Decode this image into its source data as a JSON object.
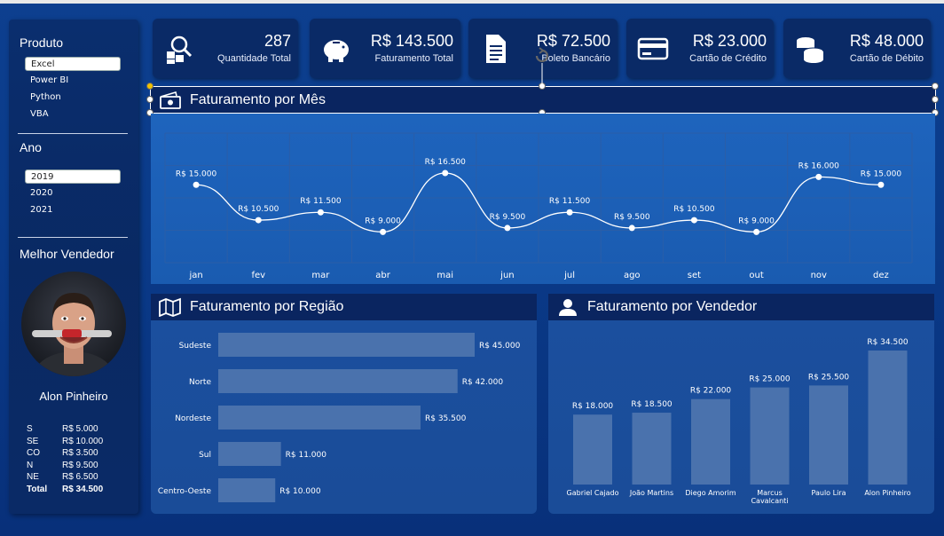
{
  "sidebar": {
    "produto_title": "Produto",
    "produtos": [
      "Excel",
      "Power BI",
      "Python",
      "VBA"
    ],
    "ano_title": "Ano",
    "anos": [
      "2019",
      "2020",
      "2021"
    ],
    "vendedor_title": "Melhor Vendedor",
    "seller_name": "Alon Pinheiro",
    "stats": [
      {
        "k": "S",
        "v": "R$ 5.000"
      },
      {
        "k": "SE",
        "v": "R$ 10.000"
      },
      {
        "k": "CO",
        "v": "R$ 3.500"
      },
      {
        "k": "N",
        "v": "R$ 9.500"
      },
      {
        "k": "NE",
        "v": "R$ 6.500"
      },
      {
        "k": "Total",
        "v": "R$ 34.500"
      }
    ]
  },
  "kpis": [
    {
      "value": "287",
      "label": "Quantidade Total",
      "icon": "search-boxes-icon"
    },
    {
      "value": "R$ 143.500",
      "label": "Faturamento Total",
      "icon": "piggy-bank-icon"
    },
    {
      "value": "R$ 72.500",
      "label": "Boleto Bancário",
      "icon": "document-icon"
    },
    {
      "value": "R$ 23.000",
      "label": "Cartão de Crédito",
      "icon": "credit-card-icon"
    },
    {
      "value": "R$ 48.000",
      "label": "Cartão de Débito",
      "icon": "coins-icon"
    }
  ],
  "panels": {
    "mes_title": "Faturamento por Mês",
    "regiao_title": "Faturamento por Região",
    "vendedor_title": "Faturamento por Vendedor"
  },
  "chart_data": [
    {
      "type": "line",
      "categories": [
        "jan",
        "fev",
        "mar",
        "abr",
        "mai",
        "jun",
        "jul",
        "ago",
        "set",
        "out",
        "nov",
        "dez"
      ],
      "values": [
        15000,
        10500,
        11500,
        9000,
        16500,
        9500,
        11500,
        9500,
        10500,
        9000,
        16000,
        15000
      ],
      "labels": [
        "R$ 15.000",
        "R$ 10.500",
        "R$ 11.500",
        "R$ 9.000",
        "R$ 16.500",
        "R$ 9.500",
        "R$ 11.500",
        "R$ 9.500",
        "R$ 10.500",
        "R$ 9.000",
        "R$ 16.000",
        "R$ 15.000"
      ],
      "grid": true
    },
    {
      "type": "bar",
      "orientation": "horizontal",
      "categories": [
        "Sudeste",
        "Norte",
        "Nordeste",
        "Sul",
        "Centro-Oeste"
      ],
      "values": [
        45000,
        42000,
        35500,
        11000,
        10000
      ],
      "labels": [
        "R$ 45.000",
        "R$ 42.000",
        "R$ 35.500",
        "R$ 11.000",
        "R$ 10.000"
      ]
    },
    {
      "type": "bar",
      "categories": [
        "Gabriel Cajado",
        "João Martins",
        "Diego Amorim",
        "Marcus Cavalcanti",
        "Paulo Lira",
        "Alon Pinheiro"
      ],
      "category_lines": [
        [
          "Gabriel Cajado"
        ],
        [
          "João Martins"
        ],
        [
          "Diego Amorim"
        ],
        [
          "Marcus",
          "Cavalcanti"
        ],
        [
          "Paulo Lira"
        ],
        [
          "Alon Pinheiro"
        ]
      ],
      "values": [
        18000,
        18500,
        22000,
        25000,
        25500,
        34500
      ],
      "labels": [
        "R$ 18.000",
        "R$ 18.500",
        "R$ 22.000",
        "R$ 25.000",
        "R$ 25.500",
        "R$ 34.500"
      ]
    }
  ],
  "colors": {
    "background": "#0a3b8a",
    "card": "#0a2a66",
    "bar": "#4a72ad",
    "line": "#ffffff"
  }
}
